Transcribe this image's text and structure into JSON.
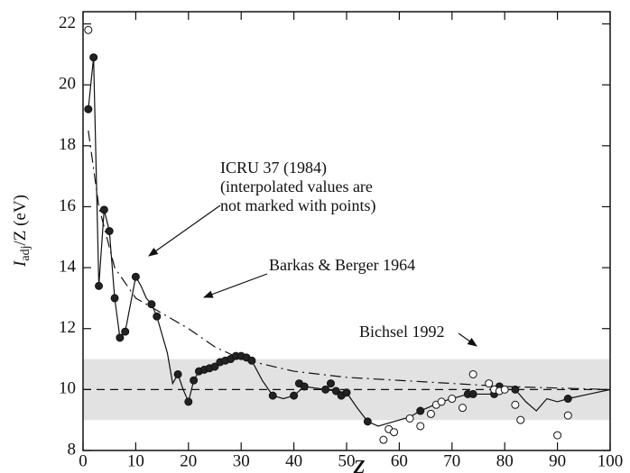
{
  "chart_data": {
    "type": "scatter",
    "xlabel": "Z",
    "ylabel_main": "I",
    "ylabel_sub": "adj",
    "ylabel_rest": "/Z (eV)",
    "xlim": [
      0,
      100
    ],
    "ylim": [
      8,
      22.4
    ],
    "xticks": [
      0,
      10,
      20,
      30,
      40,
      50,
      60,
      70,
      80,
      90,
      100
    ],
    "yticks": [
      8,
      10,
      12,
      14,
      16,
      18,
      20,
      22
    ],
    "band": [
      9,
      11
    ],
    "band_color": "#e2e2e2",
    "reference": 10,
    "points": [
      {
        "fill": "#222222",
        "x": [
          1,
          2,
          3,
          4,
          5,
          6,
          7,
          8,
          10,
          13,
          14,
          18,
          20,
          21,
          22,
          23,
          24,
          25,
          26,
          27,
          28,
          29,
          30,
          31,
          32,
          36,
          40,
          41,
          42,
          46,
          47,
          48,
          49,
          50,
          54,
          64,
          73,
          74,
          78,
          79,
          82,
          92
        ],
        "values": [
          19.2,
          20.9,
          13.4,
          15.9,
          15.2,
          13.0,
          11.7,
          11.9,
          13.7,
          12.8,
          12.4,
          10.5,
          9.6,
          10.3,
          10.6,
          10.65,
          10.7,
          10.75,
          10.9,
          10.95,
          11.0,
          11.1,
          11.1,
          11.05,
          10.95,
          9.8,
          9.8,
          10.2,
          10.1,
          10.0,
          10.2,
          9.95,
          9.8,
          9.9,
          8.95,
          9.3,
          9.85,
          9.85,
          9.85,
          10.1,
          10.0,
          9.7
        ]
      },
      {
        "fill": "#ffffff",
        "x": [
          1,
          57,
          58,
          59,
          62,
          64,
          66,
          67,
          68,
          70,
          72,
          74,
          77,
          78,
          79,
          80,
          82,
          83,
          90,
          92
        ],
        "values": [
          21.8,
          8.35,
          8.7,
          8.6,
          9.05,
          8.8,
          9.2,
          9.5,
          9.6,
          9.7,
          9.4,
          10.5,
          10.2,
          10.0,
          9.95,
          10.0,
          9.5,
          9.0,
          8.5,
          9.15
        ]
      }
    ],
    "lines": [
      {
        "style": "solid",
        "x": [
          1,
          2,
          3,
          4,
          5,
          6,
          7,
          8,
          10,
          11,
          12,
          13,
          14,
          16,
          17,
          18,
          19,
          20,
          21,
          22,
          25,
          29,
          31,
          32,
          34,
          36,
          38,
          40,
          42,
          46,
          50,
          52,
          54,
          56,
          58,
          62,
          64,
          68,
          73,
          78,
          80,
          82,
          84,
          86,
          88,
          90,
          92,
          96,
          100
        ],
        "values": [
          19.2,
          20.9,
          13.4,
          15.9,
          15.2,
          13.0,
          11.7,
          11.9,
          13.7,
          13.4,
          13.0,
          12.8,
          12.4,
          11.2,
          10.2,
          10.5,
          10.0,
          9.6,
          10.3,
          10.6,
          10.75,
          11.1,
          11.05,
          10.95,
          10.3,
          9.8,
          9.7,
          9.8,
          10.1,
          10.0,
          9.9,
          9.4,
          8.95,
          8.8,
          8.9,
          9.1,
          9.3,
          9.6,
          9.85,
          9.85,
          10.0,
          10.0,
          9.6,
          9.3,
          9.7,
          9.6,
          9.7,
          9.85,
          10.0
        ]
      },
      {
        "style": "dashdot",
        "x": [
          1,
          3,
          6,
          10,
          15,
          20,
          25,
          30,
          40,
          50,
          60,
          70,
          80,
          90,
          100
        ],
        "values": [
          18.5,
          16,
          14,
          13,
          12.5,
          12,
          11.4,
          11.0,
          10.6,
          10.4,
          10.3,
          10.2,
          10.1,
          10.05,
          10.0
        ]
      }
    ],
    "annotations": [
      {
        "lines": [
          "ICRU 37 (1984)",
          "(interpolated values are",
          "not marked with points)"
        ]
      },
      {
        "lines": [
          "Barkas & Berger 1964"
        ]
      },
      {
        "lines": [
          "Bichsel 1992"
        ]
      }
    ]
  }
}
